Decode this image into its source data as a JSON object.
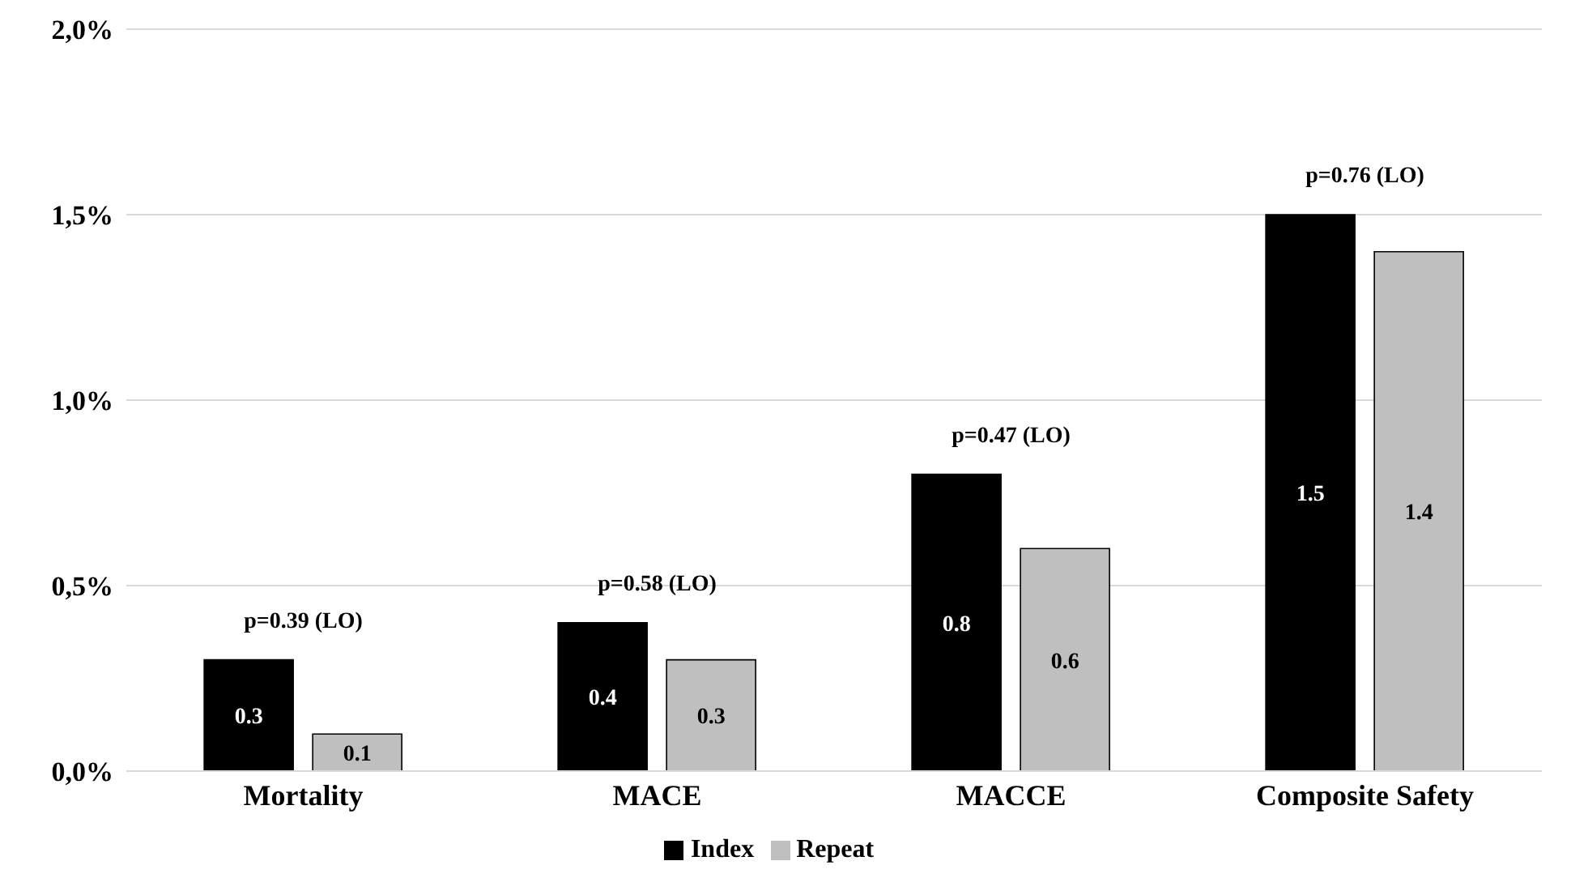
{
  "chart_data": {
    "type": "bar",
    "categories": [
      "Mortality",
      "MACE",
      "MACCE",
      "Composite Safety"
    ],
    "series": [
      {
        "name": "Index",
        "color": "#000000",
        "values": [
          0.3,
          0.4,
          0.8,
          1.5
        ]
      },
      {
        "name": "Repeat",
        "color": "#bfbfbf",
        "values": [
          0.1,
          0.3,
          0.6,
          1.4
        ]
      }
    ],
    "ylim": [
      0,
      2
    ],
    "yticks": [
      {
        "value": 0,
        "label": "0,0%"
      },
      {
        "value": 0.5,
        "label": "0,5%"
      },
      {
        "value": 1,
        "label": "1,0%"
      },
      {
        "value": 1.5,
        "label": "1,5%"
      },
      {
        "value": 2,
        "label": "2,0%"
      }
    ],
    "grid": "y",
    "legend": "bottom",
    "data_labels": true,
    "annotations": [
      "p=0.39 (LO)",
      "p=0.58 (LO)",
      "p=0.47 (LO)",
      "p=0.76 (LO)"
    ]
  }
}
